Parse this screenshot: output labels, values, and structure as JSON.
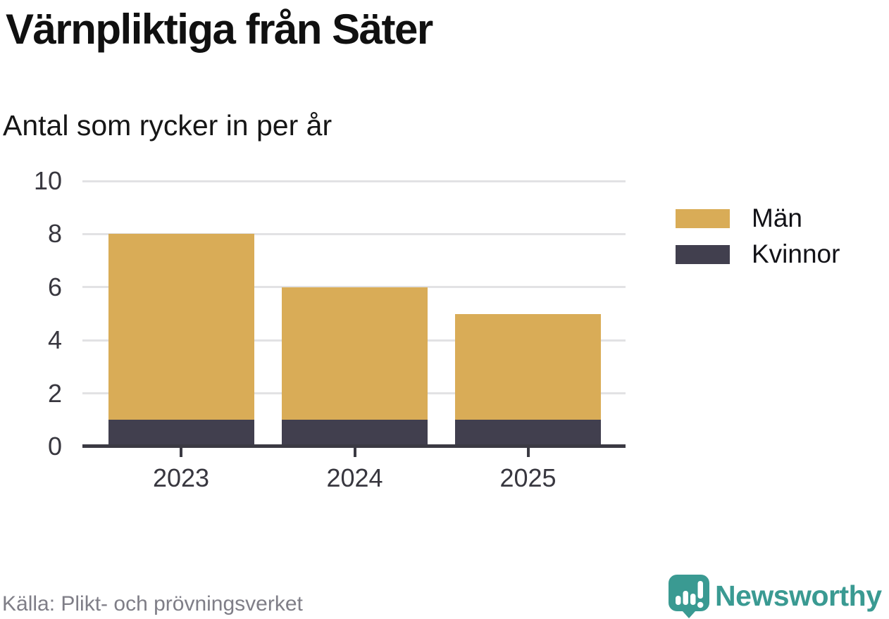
{
  "header": {
    "title": "Värnpliktiga från Säter",
    "subtitle": "Antal som rycker in per år"
  },
  "chart_data": {
    "type": "bar",
    "stacked": true,
    "title": "Värnpliktiga från Säter",
    "subtitle": "Antal som rycker in per år",
    "xlabel": "",
    "ylabel": "",
    "categories": [
      "2023",
      "2024",
      "2025"
    ],
    "series": [
      {
        "name": "Män",
        "values": [
          7,
          5,
          4
        ],
        "color": "#d9ac57"
      },
      {
        "name": "Kvinnor",
        "values": [
          1,
          1,
          1
        ],
        "color": "#413f4e"
      }
    ],
    "stack_bottom_to_top": [
      "Kvinnor",
      "Män"
    ],
    "totals": [
      8,
      6,
      5
    ],
    "ylim": [
      0,
      10
    ],
    "yticks": [
      0,
      2,
      4,
      6,
      8,
      10
    ],
    "grid": true,
    "legend_position": "right"
  },
  "legend": {
    "items": [
      {
        "label": "Män",
        "color": "#d9ac57"
      },
      {
        "label": "Kvinnor",
        "color": "#413f4e"
      }
    ]
  },
  "footer": {
    "source": "Källa: Plikt- och prövningsverket",
    "brand": "Newsworthy"
  },
  "icons": {
    "brand_logo": "bar-chart-speech-bubble-icon"
  },
  "colors": {
    "background": "#ffffff",
    "axis": "#3b3a43",
    "grid": "#e2e2e4",
    "tick_label": "#38373f",
    "title": "#101010",
    "source_text": "#7f7e87",
    "brand_teal": "#3a9a92",
    "series_man": "#d9ac57",
    "series_kvinnor": "#413f4e"
  }
}
